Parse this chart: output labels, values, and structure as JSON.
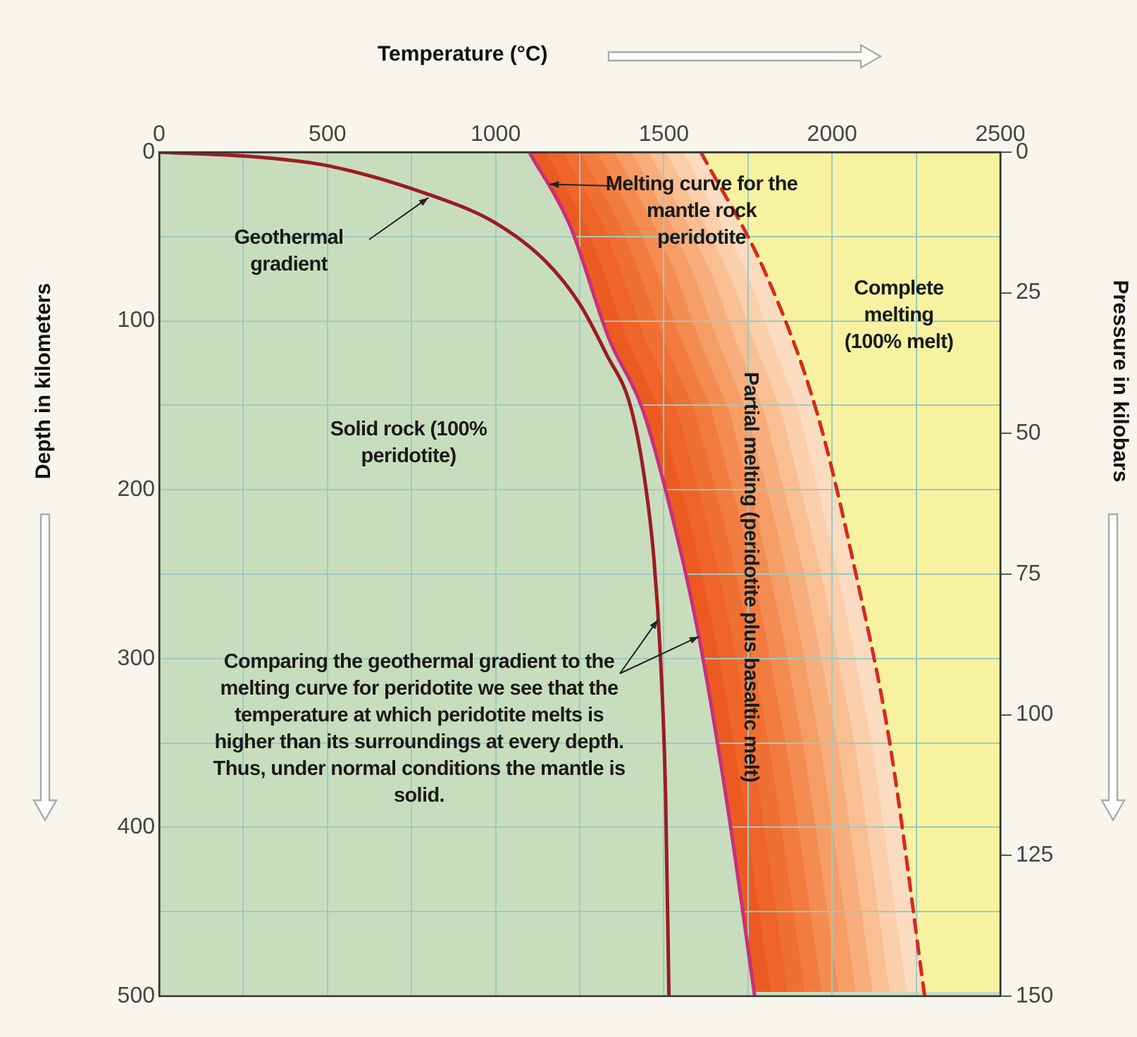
{
  "chart_data": {
    "type": "line",
    "xlabel": "Temperature (°C)",
    "ylabel": "Depth in kilometers",
    "y2label": "Pressure in kilobars",
    "xlim": [
      0,
      2500
    ],
    "xticks": [
      0,
      {
        "value": 250,
        "label": null
      },
      500,
      {
        "value": 750,
        "label": null
      },
      1000,
      {
        "value": 1250,
        "label": null
      },
      1500,
      {
        "value": 1750,
        "label": null
      },
      2000,
      {
        "value": 2250,
        "label": null
      },
      2500
    ],
    "ylim": [
      500,
      0
    ],
    "yticks": [
      0,
      {
        "value": 50,
        "label": null
      },
      100,
      {
        "value": 150,
        "label": null
      },
      200,
      {
        "value": 250,
        "label": null
      },
      300,
      {
        "value": 350,
        "label": null
      },
      400,
      {
        "value": 450,
        "label": null
      },
      500
    ],
    "y2lim": [
      150,
      0
    ],
    "y2ticks": [
      0,
      25,
      50,
      75,
      100,
      125,
      150
    ],
    "grid": true,
    "marker": "none",
    "legend": false,
    "series": [
      {
        "color": "#9b1c24",
        "x": [
          0,
          300,
          500,
          800,
          1000,
          1150,
          1250,
          1330,
          1400,
          1440,
          1470,
          1490,
          1505,
          1515
        ],
        "values": [
          0,
          3,
          8,
          25,
          42,
          65,
          90,
          120,
          150,
          190,
          240,
          300,
          380,
          500
        ]
      },
      {
        "color": "#c8307a",
        "x": [
          1100,
          1220,
          1336,
          1436,
          1530,
          1604,
          1688,
          1770
        ],
        "values": [
          0,
          43,
          110,
          152,
          220,
          287,
          386,
          500
        ]
      },
      {
        "color": "#d62a20",
        "line_style": "dashed",
        "x": [
          1610,
          1805,
          1956,
          2073,
          2173,
          2275
        ],
        "values": [
          0,
          73,
          155,
          252,
          352,
          500
        ]
      }
    ],
    "annotations": [
      {
        "text": "Geothermal gradient",
        "x": 800,
        "y": 27
      },
      {
        "text": "Melting curve for the mantle rock peridotite",
        "x": 1160,
        "y": 19
      },
      "Complete melting (100% melt)",
      "Partial melting (peridotite plus basaltic melt)",
      "Solid rock (100% peridotite)",
      {
        "text": "Comparing the geothermal gradient to the melting curve for peridotite we see that the temperature at which peridotite melts is higher than its surroundings at every depth. Thus, under normal conditions the mantle is solid.",
        "x": 1604,
        "y": 287
      }
    ]
  }
}
